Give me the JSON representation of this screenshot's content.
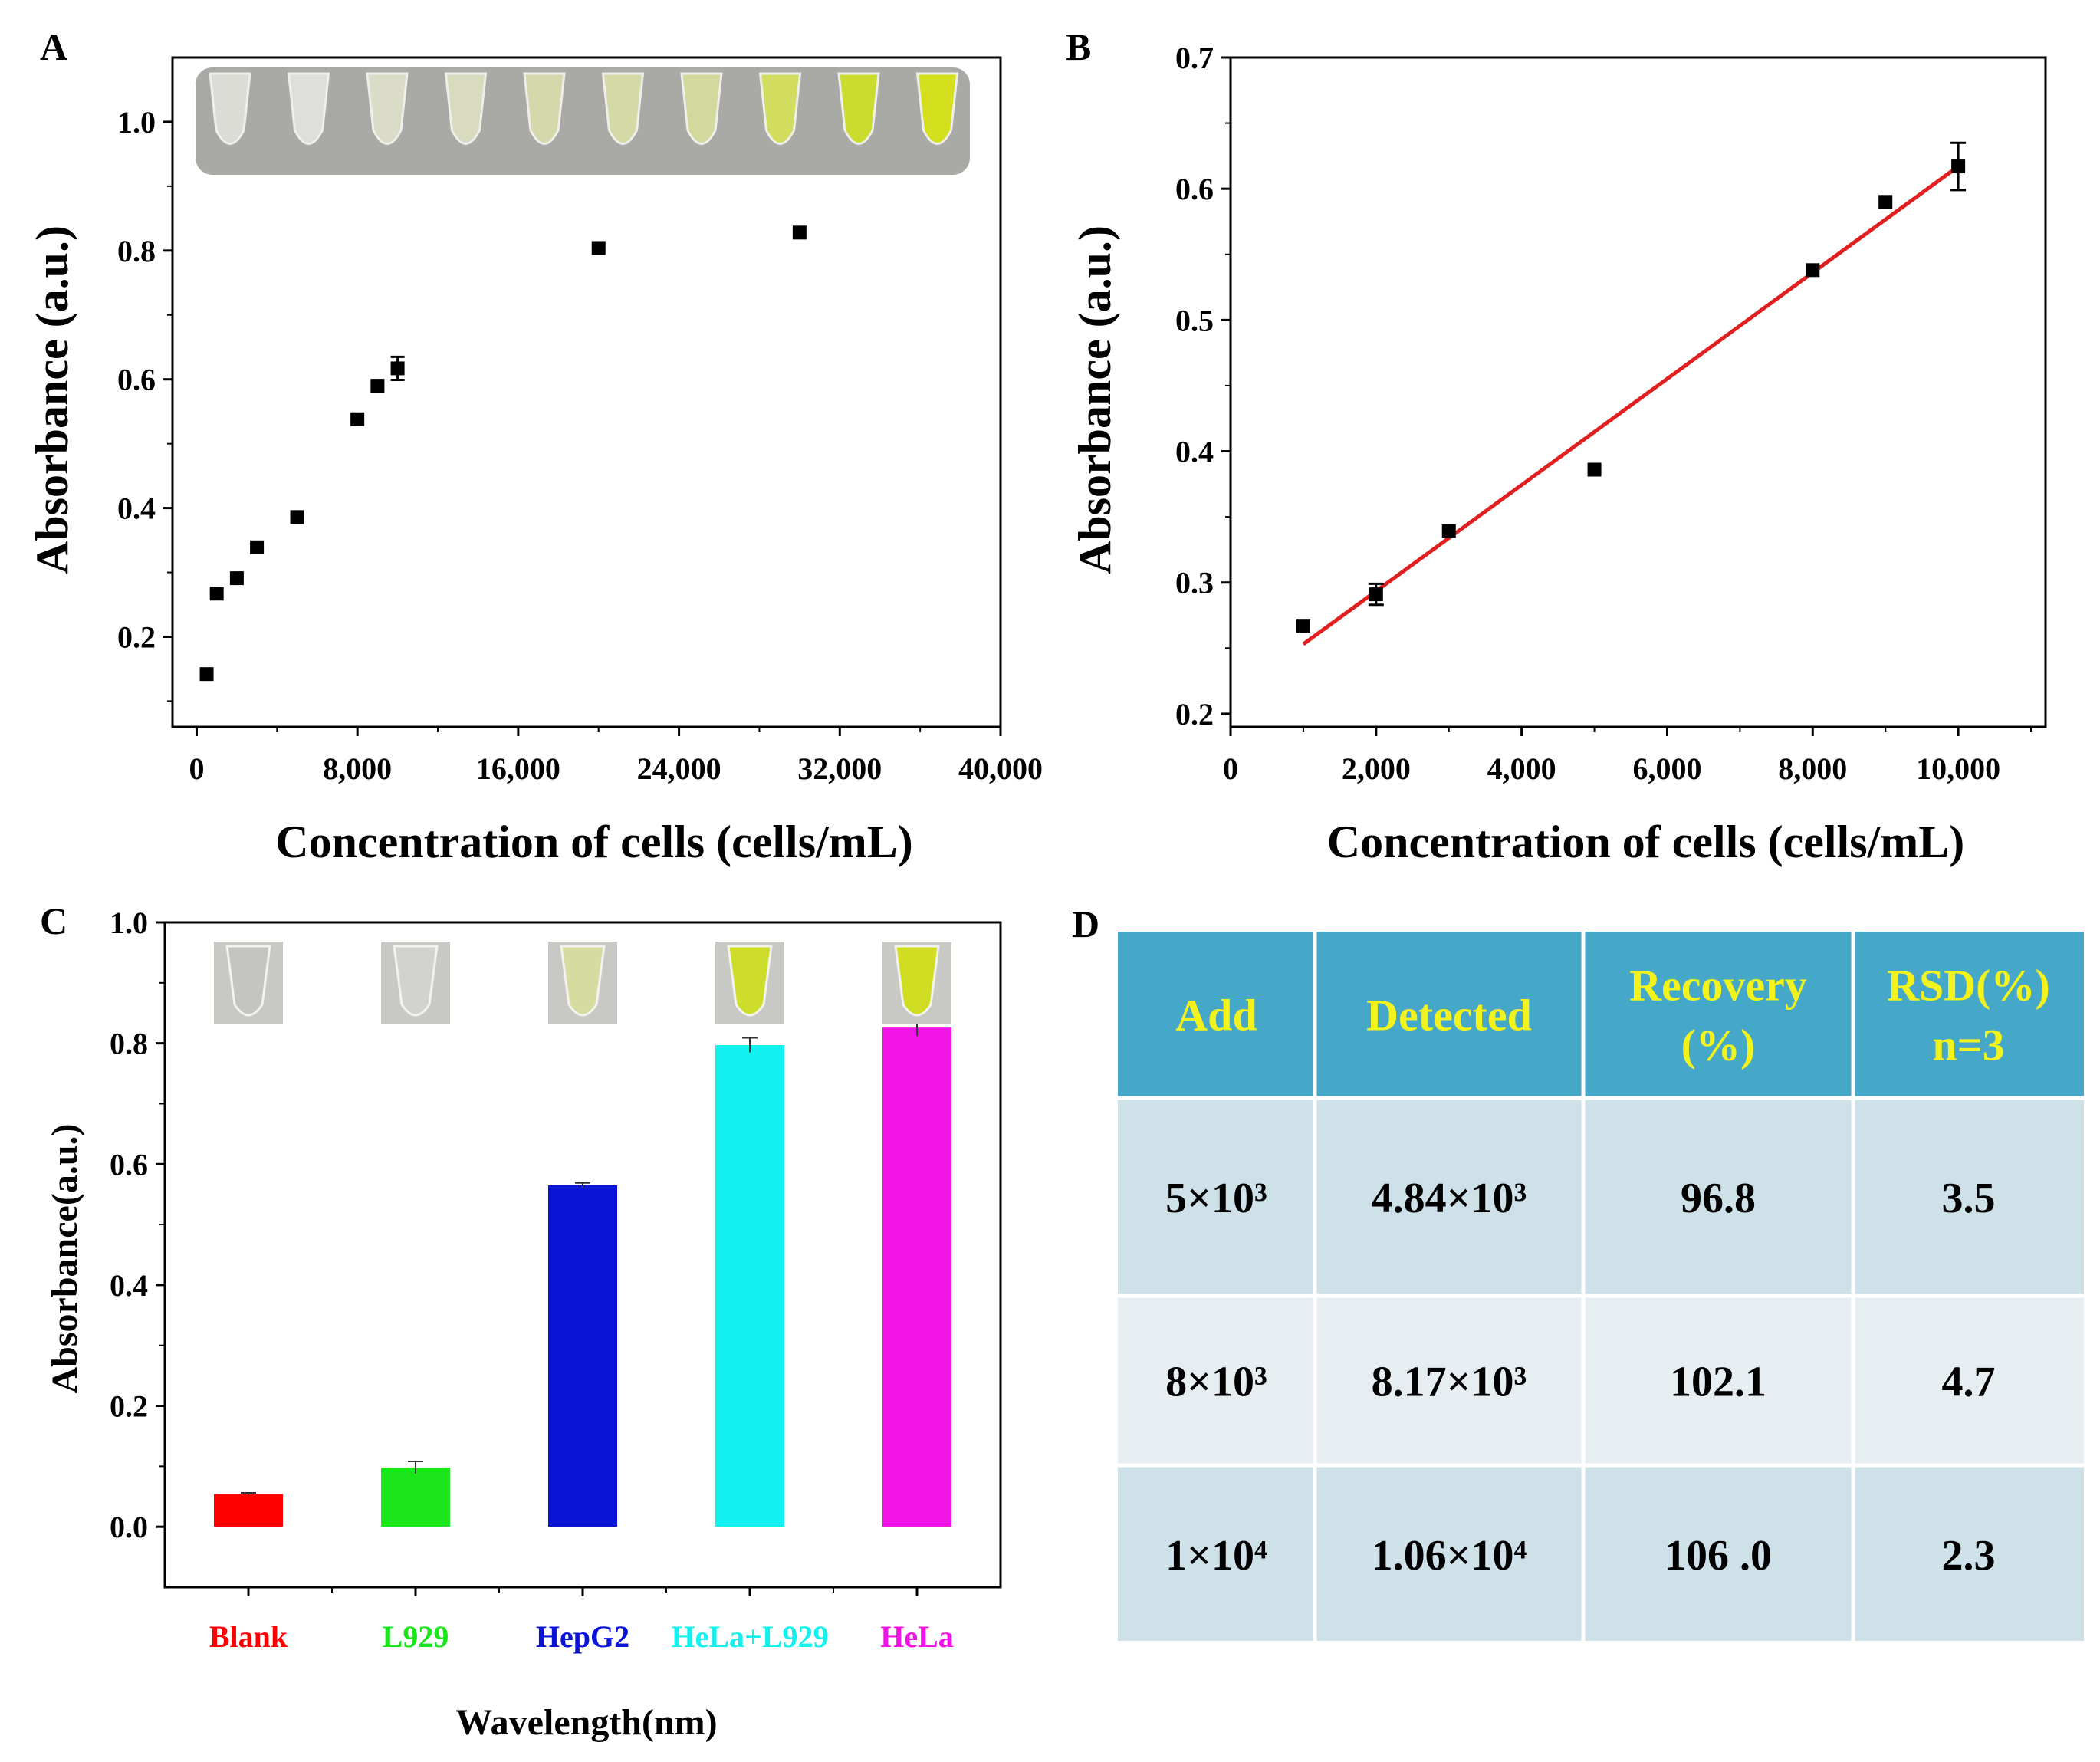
{
  "panels": {
    "A": {
      "label": "A",
      "chart_data": {
        "type": "scatter",
        "xlabel": "Concentration of cells (cells/mL)",
        "ylabel": "Absorbance (a.u.)",
        "xlim": [
          -1200,
          40000
        ],
        "ylim": [
          0.06,
          1.1
        ],
        "x_ticks": [
          0,
          8000,
          16000,
          24000,
          32000,
          40000
        ],
        "x_tick_labels": [
          "0",
          "8,000",
          "16,000",
          "24,000",
          "32,000",
          "40,000"
        ],
        "y_ticks": [
          0.2,
          0.4,
          0.6,
          0.8,
          1.0
        ],
        "y_tick_labels": [
          "0.2",
          "0.4",
          "0.6",
          "0.8",
          "1.0"
        ],
        "points": [
          {
            "x": 500,
            "y": 0.142,
            "err": 0.003
          },
          {
            "x": 1000,
            "y": 0.267,
            "err": 0.004
          },
          {
            "x": 2000,
            "y": 0.291,
            "err": 0.004
          },
          {
            "x": 3000,
            "y": 0.339,
            "err": 0.004
          },
          {
            "x": 5000,
            "y": 0.386,
            "err": 0.004
          },
          {
            "x": 8000,
            "y": 0.538,
            "err": 0.004
          },
          {
            "x": 9000,
            "y": 0.59,
            "err": 0.004
          },
          {
            "x": 10000,
            "y": 0.617,
            "err": 0.018
          },
          {
            "x": 20000,
            "y": 0.804,
            "err": 0.004
          },
          {
            "x": 30000,
            "y": 0.828,
            "err": 0.004
          }
        ],
        "inset_tube_colors": [
          "#dcdcd6",
          "#dededa",
          "#dbdcc8",
          "#d8dbbd",
          "#d4d8ab",
          "#d5d9a6",
          "#d3d99c",
          "#d2dc5e",
          "#ccdc2e",
          "#d4e01e"
        ]
      }
    },
    "B": {
      "label": "B",
      "chart_data": {
        "type": "scatter",
        "xlabel": "Concentration of cells (cells/mL)",
        "ylabel": "Absorbance (a.u.)",
        "xlim": [
          0,
          11200
        ],
        "ylim": [
          0.19,
          0.7
        ],
        "x_ticks": [
          0,
          2000,
          4000,
          6000,
          8000,
          10000
        ],
        "x_tick_labels": [
          "0",
          "2,000",
          "4,000",
          "6,000",
          "8,000",
          "10,000"
        ],
        "y_ticks": [
          0.2,
          0.3,
          0.4,
          0.5,
          0.6,
          0.7
        ],
        "y_tick_labels": [
          "0.2",
          "0.3",
          "0.4",
          "0.5",
          "0.6",
          "0.7"
        ],
        "points": [
          {
            "x": 1000,
            "y": 0.267,
            "err": 0.004
          },
          {
            "x": 2000,
            "y": 0.291,
            "err": 0.008
          },
          {
            "x": 3000,
            "y": 0.339,
            "err": 0.004
          },
          {
            "x": 5000,
            "y": 0.386,
            "err": 0.004
          },
          {
            "x": 8000,
            "y": 0.538,
            "err": 0.004
          },
          {
            "x": 9000,
            "y": 0.59,
            "err": 0.004
          },
          {
            "x": 10000,
            "y": 0.617,
            "err": 0.018
          }
        ],
        "fit_line": {
          "x": [
            1000,
            10000
          ],
          "y": [
            0.253,
            0.617
          ],
          "color": "#e02020"
        }
      }
    },
    "C": {
      "label": "C",
      "chart_data": {
        "type": "bar",
        "xlabel": "Wavelength(nm)",
        "ylabel": "Absorbance(a.u.)",
        "ylim": [
          -0.1,
          1.0
        ],
        "y_ticks": [
          0.0,
          0.2,
          0.4,
          0.6,
          0.8,
          1.0
        ],
        "y_tick_labels": [
          "0.0",
          "0.2",
          "0.4",
          "0.6",
          "0.8",
          "1.0"
        ],
        "categories": [
          "Blank",
          "L929",
          "HepG2",
          "HeLa+L929",
          "HeLa"
        ],
        "values": [
          0.054,
          0.098,
          0.565,
          0.797,
          0.826
        ],
        "errors": [
          0.002,
          0.01,
          0.004,
          0.012,
          0.014
        ],
        "colors": [
          "#ff0000",
          "#1be51b",
          "#0a14d6",
          "#14f0f0",
          "#f014e6"
        ],
        "inset_tube_colors": [
          "#c4c4c2",
          "#d2d2cf",
          "#d6dca0",
          "#cedc2a",
          "#d0dd22"
        ]
      }
    },
    "D": {
      "label": "D",
      "table": {
        "header": [
          "Add",
          "Detected",
          "Recovery\n(%)",
          "RSD(%)\nn=3"
        ],
        "rows": [
          [
            "5×10³",
            "4.84×10³",
            "96.8",
            "3.5"
          ],
          [
            "8×10³",
            "8.17×10³",
            "102.1",
            "4.7"
          ],
          [
            "1×10⁴",
            "1.06×10⁴",
            "106 .0",
            "2.3"
          ]
        ],
        "header_bg": "#46a8c8",
        "header_text_color": "#f2f21d",
        "row_bgs": [
          "#cfe1e8",
          "#e6eef1",
          "#cfe1e8"
        ]
      }
    }
  }
}
